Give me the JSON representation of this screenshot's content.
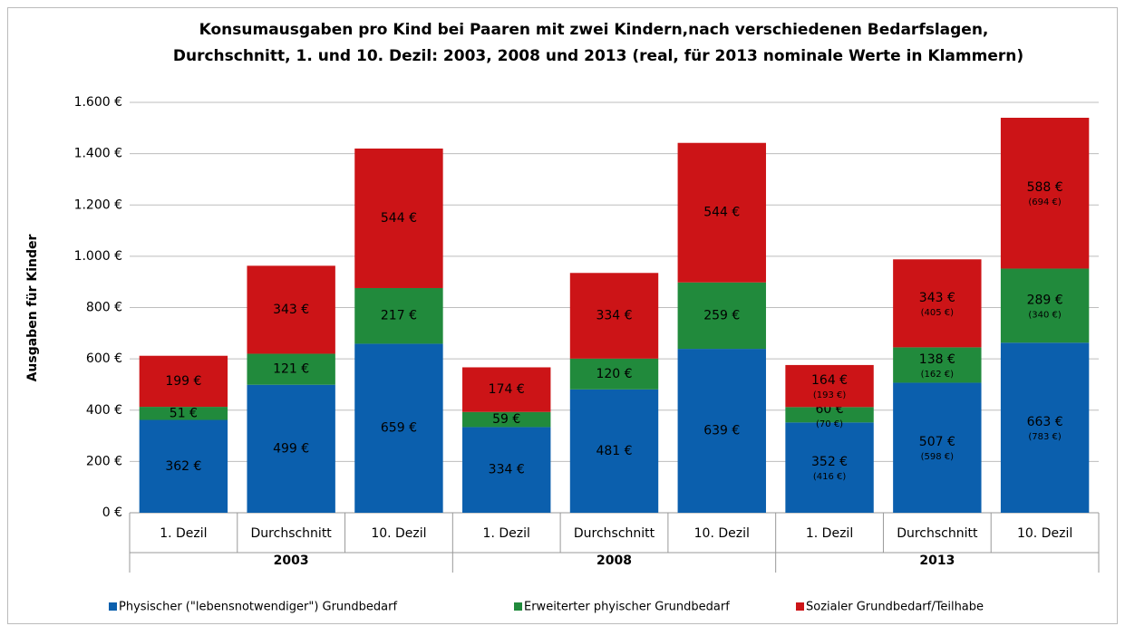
{
  "chart_data": {
    "type": "stacked-bar",
    "title": [
      "Konsumausgaben pro Kind bei Paaren mit zwei Kindern,nach verschiedenen Bedarfslagen,",
      "Durchschnitt, 1. und 10. Dezil: 2003, 2008 und 2013 (real, für 2013 nominale Werte in Klammern)"
    ],
    "y_label": "Ausgaben für Kinder",
    "categories": [
      "1. Dezil",
      "Durchschnitt",
      "10. Dezil",
      "1. Dezil",
      "Durchschnitt",
      "10. Dezil",
      "1. Dezil",
      "Durchschnitt",
      "10. Dezil"
    ],
    "groups": [
      "2003",
      "2008",
      "2013"
    ],
    "ylim": [
      0,
      1600
    ],
    "yticks": [
      {
        "value": 0,
        "label": "0 €"
      },
      {
        "value": 200,
        "label": "200 €"
      },
      {
        "value": 400,
        "label": "400 €"
      },
      {
        "value": 600,
        "label": "600 €"
      },
      {
        "value": 800,
        "label": "800 €"
      },
      {
        "value": 1000,
        "label": "1.000 €"
      },
      {
        "value": 1200,
        "label": "1.200 €"
      },
      {
        "value": 1400,
        "label": "1.400 €"
      },
      {
        "value": 1600,
        "label": "1.600 €"
      }
    ],
    "grid": true,
    "legend": "bottom",
    "series": [
      {
        "name": "Physischer (\"lebensnotwendiger\") Grundbedarf",
        "color": "#0b5fad",
        "values": [
          362,
          499,
          659,
          334,
          481,
          639,
          352,
          507,
          663
        ],
        "value_labels": [
          "362 €",
          "499 €",
          "659 €",
          "334 €",
          "481 €",
          "639 €",
          "352 €",
          "507 €",
          "663 €"
        ],
        "nominal_values": [
          null,
          null,
          null,
          null,
          null,
          null,
          416,
          598,
          783
        ],
        "nominal_labels": [
          null,
          null,
          null,
          null,
          null,
          null,
          "(416 €)",
          "(598 €)",
          "(783 €)"
        ]
      },
      {
        "name": "Erweiterter phyischer Grundbedarf",
        "color": "#218a3c",
        "values": [
          51,
          121,
          217,
          59,
          120,
          259,
          60,
          138,
          289
        ],
        "value_labels": [
          "51 €",
          "121 €",
          "217 €",
          "59 €",
          "120 €",
          "259 €",
          "60 €",
          "138 €",
          "289 €"
        ],
        "nominal_values": [
          null,
          null,
          null,
          null,
          null,
          null,
          70,
          162,
          340
        ],
        "nominal_labels": [
          null,
          null,
          null,
          null,
          null,
          null,
          "(70  €)",
          "(162 €)",
          "(340 €)"
        ]
      },
      {
        "name": "Sozialer Grundbedarf/Teilhabe",
        "color": "#cc1417",
        "values": [
          199,
          343,
          544,
          174,
          334,
          544,
          164,
          343,
          588
        ],
        "value_labels": [
          "199 €",
          "343 €",
          "544 €",
          "174 €",
          "334 €",
          "544 €",
          "164 €",
          "343 €",
          "588 €"
        ],
        "nominal_values": [
          null,
          null,
          null,
          null,
          null,
          null,
          193,
          405,
          694
        ],
        "nominal_labels": [
          null,
          null,
          null,
          null,
          null,
          null,
          "(193  €)",
          "(405 €)",
          "(694 €)"
        ]
      }
    ]
  }
}
